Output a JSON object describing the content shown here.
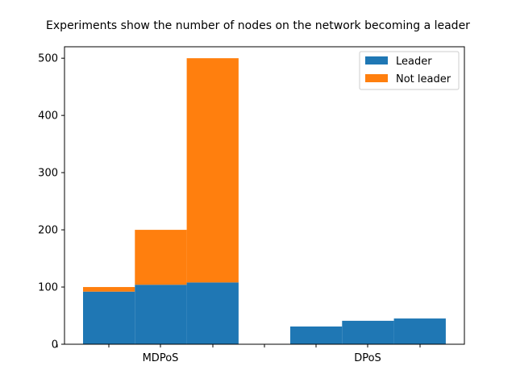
{
  "chart_data": {
    "type": "bar",
    "stacked": true,
    "title": "Experiments show the number of nodes on the network becoming a leader",
    "xlabel": "",
    "ylabel": "",
    "categories": [
      "MDPoS",
      "DPoS"
    ],
    "bars_per_category": 3,
    "series": [
      {
        "name": "Leader",
        "color": "#1f77b4",
        "values": {
          "MDPoS": [
            92,
            104,
            108
          ],
          "DPoS": [
            31,
            41,
            45
          ]
        }
      },
      {
        "name": "Not leader",
        "color": "#ff7f0e",
        "values": {
          "MDPoS": [
            8,
            96,
            392
          ],
          "DPoS": [
            0,
            0,
            0
          ]
        }
      }
    ],
    "ylim": [
      0,
      520
    ],
    "yticks": [
      0,
      100,
      200,
      300,
      400,
      500
    ],
    "grid": false,
    "legend_position": "top-right"
  }
}
